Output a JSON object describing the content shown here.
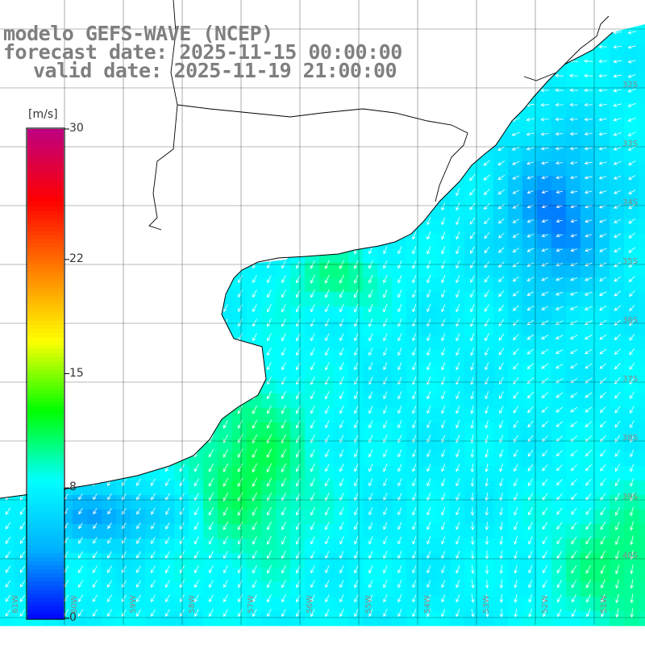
{
  "header": {
    "model_line": "modelo GEFS-WAVE (NCEP)",
    "forecast_line": "forecast date: 2025-11-15 00:00:00",
    "valid_line": "valid date: 2025-11-19 21:00:00"
  },
  "colorbar": {
    "unit": "[m/s]",
    "min": 0,
    "max": 30,
    "ticks": [
      "30",
      "22",
      "15",
      "8",
      "0"
    ],
    "tick_values": [
      30,
      22,
      15,
      8,
      0
    ],
    "stops": [
      "#0000ff",
      "#00b0ff",
      "#00ffff",
      "#00ff00",
      "#ffff00",
      "#ff8000",
      "#ff0000",
      "#c0007f"
    ]
  },
  "colors": {
    "land": "#ffffff",
    "coast": "#000000",
    "grid": "#000000",
    "arrows": "#ffffff",
    "title_text": "#7f7f7f"
  },
  "longitude_labels": [
    "61W",
    "60W",
    "59W",
    "58W",
    "57W",
    "56W",
    "55W",
    "54W",
    "53W",
    "52W",
    "51W"
  ],
  "latitude_labels": [
    "32S",
    "33S",
    "34S",
    "35S",
    "36S",
    "37S",
    "38S",
    "39S",
    "40S"
  ]
}
